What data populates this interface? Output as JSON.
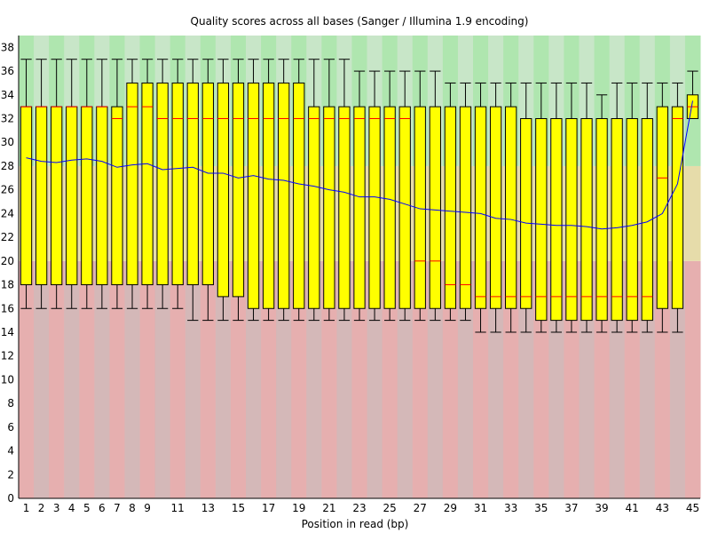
{
  "chart_data": {
    "type": "boxplot",
    "title": "Quality scores across all bases (Sanger / Illumina 1.9 encoding)",
    "xlabel": "Position in read (bp)",
    "ylabel": "",
    "ylim": [
      0,
      39
    ],
    "y_ticks": [
      0,
      2,
      4,
      6,
      8,
      10,
      12,
      14,
      16,
      18,
      20,
      22,
      24,
      26,
      28,
      30,
      32,
      34,
      36,
      38
    ],
    "x_tick_labels": [
      "1",
      "2",
      "3",
      "4",
      "5",
      "6",
      "7",
      "8",
      "9",
      "11",
      "13",
      "15",
      "17",
      "19",
      "21",
      "23",
      "25",
      "27",
      "29",
      "31",
      "33",
      "35",
      "37",
      "39",
      "41",
      "43",
      "45"
    ],
    "positions": [
      1,
      2,
      3,
      4,
      5,
      6,
      7,
      8,
      9,
      10,
      11,
      12,
      13,
      14,
      15,
      16,
      17,
      18,
      19,
      20,
      21,
      22,
      23,
      24,
      25,
      26,
      27,
      28,
      29,
      30,
      31,
      32,
      33,
      34,
      35,
      36,
      37,
      38,
      39,
      40,
      41,
      42,
      43,
      44,
      45
    ],
    "tick_position_index": [
      0,
      1,
      2,
      3,
      4,
      5,
      6,
      7,
      8,
      10,
      12,
      14,
      16,
      18,
      20,
      22,
      24,
      26,
      28,
      30,
      32,
      34,
      36,
      38,
      40,
      42,
      44
    ],
    "background_zones": [
      {
        "from": 0,
        "to": 20,
        "color": "#e6afaf",
        "alt_color": "#d4b8b8",
        "label": "poor"
      },
      {
        "from": 20,
        "to": 28,
        "color": "#e6dcaa",
        "alt_color": "#e6dcaa",
        "label": "reasonable"
      },
      {
        "from": 28,
        "to": 39,
        "color": "#afe6af",
        "alt_color": "#c8e6c8",
        "label": "good"
      }
    ],
    "colors": {
      "box": "#ffff00",
      "median": "#ff0000",
      "mean_line": "#0000ff",
      "outline": "#000000"
    },
    "series": [
      {
        "lower_whisker": [
          16,
          16,
          16,
          16,
          16,
          16,
          16,
          16,
          16,
          16,
          16,
          15,
          15,
          15,
          15,
          15,
          15,
          15,
          15,
          15,
          15,
          15,
          15,
          15,
          15,
          15,
          15,
          15,
          15,
          15,
          14,
          14,
          14,
          14,
          14,
          14,
          14,
          14,
          14,
          14,
          14,
          14,
          14,
          14,
          32
        ],
        "q1": [
          18,
          18,
          18,
          18,
          18,
          18,
          18,
          18,
          18,
          18,
          18,
          18,
          18,
          17,
          17,
          16,
          16,
          16,
          16,
          16,
          16,
          16,
          16,
          16,
          16,
          16,
          16,
          16,
          16,
          16,
          16,
          16,
          16,
          16,
          15,
          15,
          15,
          15,
          15,
          15,
          15,
          15,
          16,
          16,
          32
        ],
        "median": [
          33,
          33,
          33,
          33,
          33,
          33,
          32,
          33,
          33,
          32,
          32,
          32,
          32,
          32,
          32,
          32,
          32,
          32,
          32,
          32,
          32,
          32,
          32,
          32,
          32,
          32,
          20,
          20,
          18,
          18,
          17,
          17,
          17,
          17,
          17,
          17,
          17,
          17,
          17,
          17,
          17,
          17,
          27,
          32,
          33
        ],
        "q3": [
          33,
          33,
          33,
          33,
          33,
          33,
          33,
          35,
          35,
          35,
          35,
          35,
          35,
          35,
          35,
          35,
          35,
          35,
          35,
          33,
          33,
          33,
          33,
          33,
          33,
          33,
          33,
          33,
          33,
          33,
          33,
          33,
          33,
          32,
          32,
          32,
          32,
          32,
          32,
          32,
          32,
          32,
          33,
          33,
          34
        ],
        "upper_whisker": [
          37,
          37,
          37,
          37,
          37,
          37,
          37,
          37,
          37,
          37,
          37,
          37,
          37,
          37,
          37,
          37,
          37,
          37,
          37,
          37,
          37,
          37,
          36,
          36,
          36,
          36,
          36,
          36,
          35,
          35,
          35,
          35,
          35,
          35,
          35,
          35,
          35,
          35,
          34,
          35,
          35,
          35,
          35,
          35,
          36
        ],
        "mean": [
          28.7,
          28.4,
          28.3,
          28.5,
          28.6,
          28.4,
          27.9,
          28.1,
          28.2,
          27.7,
          27.8,
          27.9,
          27.4,
          27.4,
          27.0,
          27.2,
          26.9,
          26.8,
          26.5,
          26.3,
          26.0,
          25.8,
          25.4,
          25.4,
          25.2,
          24.8,
          24.4,
          24.3,
          24.2,
          24.1,
          24.0,
          23.6,
          23.5,
          23.2,
          23.1,
          23.0,
          23.0,
          22.9,
          22.7,
          22.8,
          23.0,
          23.3,
          24.0,
          26.5,
          33.5
        ]
      }
    ]
  }
}
